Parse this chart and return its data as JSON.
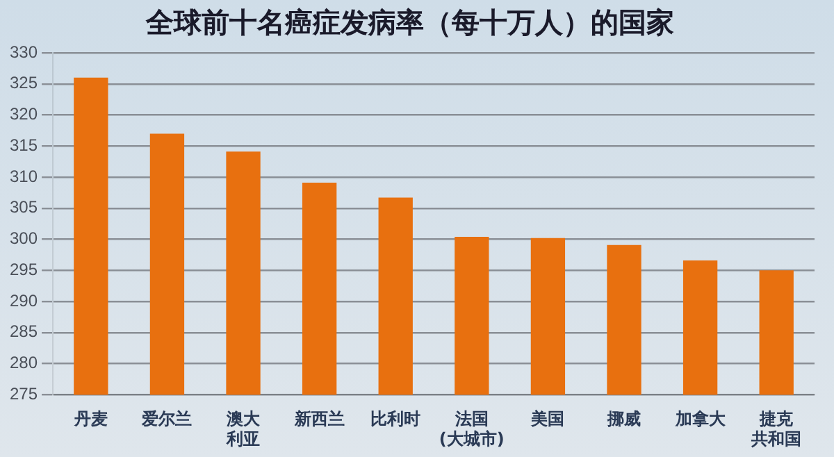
{
  "chart_data": {
    "type": "bar",
    "title": "全球前十名癌症发病率（每十万人）的国家",
    "categories": [
      "丹麦",
      "爱尔兰",
      "澳大利亚",
      "新西兰",
      "比利时",
      "法国(大城市)",
      "美国",
      "挪威",
      "加拿大",
      "捷克共和国"
    ],
    "values": [
      326,
      317,
      314.1,
      309.1,
      306.7,
      300.4,
      300.2,
      299.1,
      296.6,
      295
    ],
    "color": "#e8700f",
    "ylim": [
      275,
      330
    ],
    "yticks": [
      275,
      280,
      285,
      290,
      295,
      300,
      305,
      310,
      315,
      320,
      325,
      330
    ],
    "grid": "y",
    "legend": false
  }
}
